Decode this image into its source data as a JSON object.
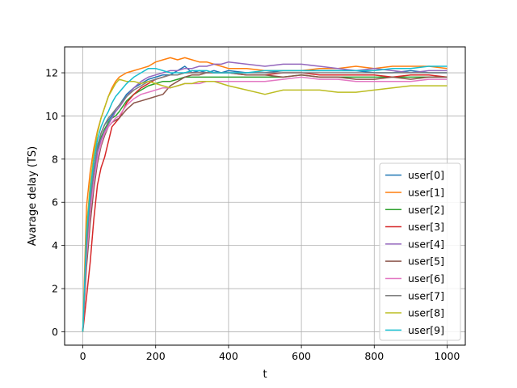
{
  "chart_data": {
    "type": "line",
    "xlabel": "t",
    "ylabel": "Avarage delay (TS)",
    "xlim": [
      -50,
      1050
    ],
    "ylim": [
      -0.62,
      13.2
    ],
    "xticks": [
      0,
      200,
      400,
      600,
      800,
      1000
    ],
    "yticks": [
      0,
      2,
      4,
      6,
      8,
      10,
      12
    ],
    "grid": true,
    "legend_position": "lower-right",
    "series": [
      {
        "name": "user[0]",
        "color": "#1f77b4",
        "x": [
          0,
          10,
          20,
          30,
          40,
          50,
          60,
          70,
          80,
          90,
          100,
          120,
          140,
          160,
          180,
          200,
          220,
          240,
          260,
          280,
          300,
          320,
          340,
          360,
          380,
          400,
          450,
          500,
          550,
          600,
          650,
          700,
          750,
          800,
          850,
          900,
          950,
          1000
        ],
        "y": [
          0,
          4.2,
          6.2,
          7.4,
          8.6,
          9.2,
          9.6,
          9.8,
          10.0,
          10.3,
          10.5,
          11.0,
          11.3,
          11.5,
          11.7,
          11.8,
          11.9,
          11.9,
          12.1,
          12.3,
          12.0,
          12.1,
          12.0,
          12.1,
          12.0,
          12.1,
          12.0,
          12.0,
          12.1,
          12.1,
          12.1,
          12.1,
          12.1,
          12.0,
          12.0,
          12.1,
          12.0,
          12.0
        ]
      },
      {
        "name": "user[1]",
        "color": "#ff7f0e",
        "x": [
          0,
          10,
          20,
          30,
          40,
          50,
          60,
          70,
          80,
          90,
          100,
          120,
          140,
          160,
          180,
          200,
          220,
          240,
          260,
          280,
          300,
          320,
          340,
          360,
          380,
          400,
          450,
          500,
          550,
          600,
          650,
          700,
          750,
          800,
          850,
          900,
          950,
          1000
        ],
        "y": [
          0,
          5.8,
          7.4,
          8.5,
          9.3,
          9.9,
          10.4,
          10.9,
          11.3,
          11.6,
          11.8,
          12.0,
          12.1,
          12.2,
          12.3,
          12.5,
          12.6,
          12.7,
          12.6,
          12.7,
          12.6,
          12.5,
          12.5,
          12.4,
          12.3,
          12.2,
          12.2,
          12.1,
          12.1,
          12.1,
          12.2,
          12.2,
          12.3,
          12.2,
          12.3,
          12.3,
          12.3,
          12.2
        ]
      },
      {
        "name": "user[2]",
        "color": "#2ca02c",
        "x": [
          0,
          10,
          20,
          30,
          40,
          50,
          60,
          70,
          80,
          90,
          100,
          120,
          140,
          160,
          180,
          200,
          220,
          240,
          260,
          280,
          300,
          320,
          340,
          360,
          380,
          400,
          450,
          500,
          550,
          600,
          650,
          700,
          750,
          800,
          850,
          900,
          950,
          1000
        ],
        "y": [
          0,
          3.8,
          6.0,
          7.5,
          8.4,
          9.0,
          9.4,
          9.7,
          9.9,
          10.0,
          10.2,
          10.7,
          11.0,
          11.2,
          11.4,
          11.5,
          11.6,
          11.6,
          11.7,
          11.8,
          11.8,
          11.8,
          11.8,
          11.8,
          11.8,
          11.8,
          11.8,
          11.8,
          11.8,
          11.9,
          11.8,
          11.8,
          11.8,
          11.8,
          11.8,
          11.8,
          11.8,
          11.8
        ]
      },
      {
        "name": "user[3]",
        "color": "#d62728",
        "x": [
          0,
          10,
          20,
          30,
          40,
          50,
          60,
          70,
          80,
          90,
          100,
          120,
          140,
          160,
          180,
          200,
          220,
          240,
          260,
          280,
          300,
          320,
          340,
          360,
          380,
          400,
          450,
          500,
          550,
          600,
          650,
          700,
          750,
          800,
          850,
          900,
          950,
          1000
        ],
        "y": [
          0,
          1.6,
          3.2,
          5.2,
          6.8,
          7.6,
          8.1,
          8.8,
          9.5,
          9.7,
          9.9,
          10.6,
          11.0,
          11.3,
          11.5,
          11.7,
          11.8,
          11.9,
          11.9,
          12.0,
          12.0,
          12.0,
          12.0,
          12.0,
          12.0,
          12.0,
          11.9,
          11.9,
          12.0,
          12.0,
          11.9,
          11.9,
          11.9,
          11.9,
          11.8,
          11.9,
          11.9,
          11.8
        ]
      },
      {
        "name": "user[4]",
        "color": "#9467bd",
        "x": [
          0,
          10,
          20,
          30,
          40,
          50,
          60,
          70,
          80,
          90,
          100,
          120,
          140,
          160,
          180,
          200,
          220,
          240,
          260,
          280,
          300,
          320,
          340,
          360,
          380,
          400,
          450,
          500,
          550,
          600,
          650,
          700,
          750,
          800,
          850,
          900,
          950,
          1000
        ],
        "y": [
          0,
          3.6,
          5.8,
          7.0,
          8.3,
          8.9,
          9.3,
          9.6,
          9.9,
          10.2,
          10.4,
          10.9,
          11.3,
          11.6,
          11.8,
          11.9,
          12.0,
          12.1,
          12.1,
          12.2,
          12.2,
          12.3,
          12.3,
          12.4,
          12.4,
          12.5,
          12.4,
          12.3,
          12.4,
          12.4,
          12.3,
          12.2,
          12.1,
          12.2,
          12.1,
          12.0,
          12.1,
          12.1
        ]
      },
      {
        "name": "user[5]",
        "color": "#8c564b",
        "x": [
          0,
          10,
          20,
          30,
          40,
          50,
          60,
          70,
          80,
          90,
          100,
          120,
          140,
          160,
          180,
          200,
          220,
          240,
          260,
          280,
          300,
          320,
          340,
          360,
          380,
          400,
          450,
          500,
          550,
          600,
          650,
          700,
          750,
          800,
          850,
          900,
          950,
          1000
        ],
        "y": [
          0,
          3.0,
          5.0,
          6.6,
          7.8,
          8.6,
          9.1,
          9.5,
          9.7,
          9.8,
          9.9,
          10.3,
          10.6,
          10.7,
          10.8,
          10.9,
          11.0,
          11.4,
          11.6,
          11.8,
          11.9,
          11.9,
          12.0,
          12.0,
          12.0,
          12.0,
          11.9,
          11.9,
          11.8,
          11.9,
          11.8,
          11.8,
          11.7,
          11.7,
          11.8,
          11.7,
          11.8,
          11.8
        ]
      },
      {
        "name": "user[6]",
        "color": "#e377c2",
        "x": [
          0,
          10,
          20,
          30,
          40,
          50,
          60,
          70,
          80,
          90,
          100,
          120,
          140,
          160,
          180,
          200,
          220,
          240,
          260,
          280,
          300,
          320,
          340,
          360,
          380,
          400,
          450,
          500,
          550,
          600,
          650,
          700,
          750,
          800,
          850,
          900,
          950,
          1000
        ],
        "y": [
          0,
          3.4,
          5.5,
          6.9,
          8.0,
          8.7,
          9.2,
          9.5,
          9.7,
          9.9,
          10.0,
          10.5,
          10.8,
          11.0,
          11.1,
          11.2,
          11.3,
          11.3,
          11.4,
          11.5,
          11.5,
          11.5,
          11.6,
          11.6,
          11.6,
          11.6,
          11.6,
          11.6,
          11.7,
          11.8,
          11.7,
          11.7,
          11.6,
          11.6,
          11.6,
          11.6,
          11.7,
          11.7
        ]
      },
      {
        "name": "user[7]",
        "color": "#7f7f7f",
        "x": [
          0,
          10,
          20,
          30,
          40,
          50,
          60,
          70,
          80,
          90,
          100,
          120,
          140,
          160,
          180,
          200,
          220,
          240,
          260,
          280,
          300,
          320,
          340,
          360,
          380,
          400,
          450,
          500,
          550,
          600,
          650,
          700,
          750,
          800,
          850,
          900,
          950,
          1000
        ],
        "y": [
          0,
          3.9,
          6.1,
          7.5,
          8.6,
          9.2,
          9.6,
          9.9,
          10.1,
          10.3,
          10.5,
          10.9,
          11.2,
          11.4,
          11.6,
          11.7,
          11.8,
          11.9,
          11.9,
          12.0,
          12.0,
          12.0,
          12.0,
          12.0,
          12.0,
          12.0,
          12.0,
          12.0,
          12.0,
          12.0,
          12.0,
          12.0,
          12.0,
          12.0,
          12.0,
          12.0,
          12.0,
          12.0
        ]
      },
      {
        "name": "user[8]",
        "color": "#bcbd22",
        "x": [
          0,
          10,
          20,
          30,
          40,
          50,
          60,
          70,
          80,
          90,
          100,
          120,
          140,
          160,
          180,
          200,
          220,
          240,
          260,
          280,
          300,
          320,
          340,
          360,
          380,
          400,
          450,
          500,
          550,
          600,
          650,
          700,
          750,
          800,
          850,
          900,
          950,
          1000
        ],
        "y": [
          0,
          4.8,
          6.8,
          8.2,
          9.2,
          9.9,
          10.4,
          10.9,
          11.2,
          11.5,
          11.7,
          11.6,
          11.6,
          11.5,
          11.6,
          11.5,
          11.4,
          11.3,
          11.4,
          11.5,
          11.5,
          11.6,
          11.6,
          11.6,
          11.5,
          11.4,
          11.2,
          11.0,
          11.2,
          11.2,
          11.2,
          11.1,
          11.1,
          11.2,
          11.3,
          11.4,
          11.4,
          11.4
        ]
      },
      {
        "name": "user[9]",
        "color": "#17becf",
        "x": [
          0,
          10,
          20,
          30,
          40,
          50,
          60,
          70,
          80,
          90,
          100,
          120,
          140,
          160,
          180,
          200,
          220,
          240,
          260,
          280,
          300,
          320,
          340,
          360,
          380,
          400,
          450,
          500,
          550,
          600,
          650,
          700,
          750,
          800,
          850,
          900,
          950,
          1000
        ],
        "y": [
          0,
          4.5,
          6.5,
          7.9,
          8.9,
          9.5,
          9.9,
          10.2,
          10.6,
          10.9,
          11.1,
          11.5,
          11.8,
          12.0,
          12.2,
          12.2,
          12.1,
          12.0,
          12.0,
          12.0,
          12.1,
          12.1,
          12.1,
          12.0,
          12.0,
          12.0,
          12.0,
          12.1,
          12.1,
          12.1,
          12.1,
          12.1,
          12.1,
          12.1,
          12.2,
          12.2,
          12.3,
          12.3
        ]
      }
    ]
  }
}
